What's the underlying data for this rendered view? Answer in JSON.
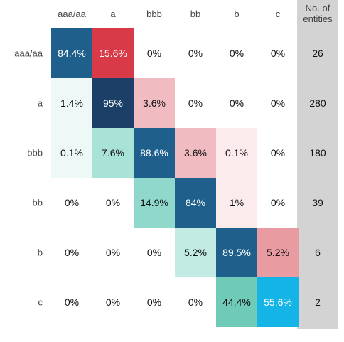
{
  "chart_data": {
    "type": "heatmap",
    "title": "",
    "columns": [
      "aaa/aa",
      "a",
      "bbb",
      "bb",
      "b",
      "c"
    ],
    "rows": [
      "aaa/aa",
      "a",
      "bbb",
      "bb",
      "b",
      "c"
    ],
    "values": [
      [
        "84.4%",
        "15.6%",
        "0%",
        "0%",
        "0%",
        "0%"
      ],
      [
        "1.4%",
        "95%",
        "3.6%",
        "0%",
        "0%",
        "0%"
      ],
      [
        "0.1%",
        "7.6%",
        "88.6%",
        "3.6%",
        "0.1%",
        "0%"
      ],
      [
        "0%",
        "0%",
        "14.9%",
        "84%",
        "1%",
        "0%"
      ],
      [
        "0%",
        "0%",
        "0%",
        "5.2%",
        "89.5%",
        "5.2%"
      ],
      [
        "0%",
        "0%",
        "0%",
        "0%",
        "44.4%",
        "55.6%"
      ]
    ],
    "count_header": [
      "No. of",
      "entities"
    ],
    "counts": [
      "26",
      "280",
      "180",
      "39",
      "6",
      "2"
    ],
    "colors": {
      "diag_dark": "#1f5f8b",
      "diag_darkest": "#1b3f66",
      "diag_bright": "#14b4e6",
      "upper_strong": "#d93a48",
      "upper_mid": "#e99ba2",
      "upper_light": "#f0bcc1",
      "upper_faint": "#fbebed",
      "lower_strong": "#6fcab8",
      "lower_mid": "#8fd8cb",
      "lower_light": "#a9e2d7",
      "lower_pale": "#c2ebe3",
      "lower_faint": "#eef9f7",
      "count_column": "#d3d3d3"
    }
  }
}
